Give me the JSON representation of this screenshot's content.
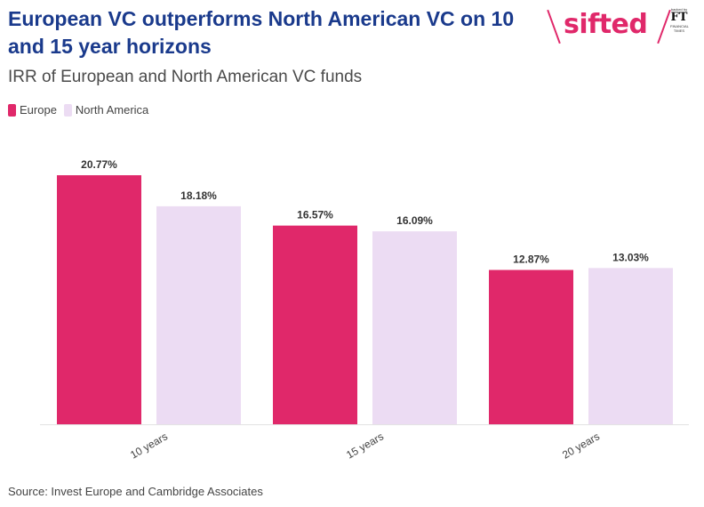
{
  "header": {
    "title": "European VC outperforms North American VC on 10 and 15 year horizons",
    "subtitle": "IRR of European and North American VC funds"
  },
  "logo": {
    "brand": "sifted",
    "backed_by": "backed by",
    "ft_mark": "FT",
    "ft_name": "FINANCIAL TIMES"
  },
  "legend": {
    "items": [
      {
        "label": "Europe",
        "color": "#e0286a"
      },
      {
        "label": "North America",
        "color": "#ecdcf3"
      }
    ]
  },
  "chart_data": {
    "type": "bar",
    "categories": [
      "10 years",
      "15 years",
      "20 years"
    ],
    "series": [
      {
        "name": "Europe",
        "color": "#e0286a",
        "values": [
          20.77,
          16.57,
          12.87
        ]
      },
      {
        "name": "North America",
        "color": "#ecdcf3",
        "values": [
          18.18,
          16.09,
          13.03
        ]
      }
    ],
    "data_labels": [
      [
        "20.77%",
        "16.57%",
        "12.87%"
      ],
      [
        "18.18%",
        "16.09%",
        "13.03%"
      ]
    ],
    "title": "European VC outperforms North American VC on 10 and 15 year horizons",
    "subtitle": "IRR of European and North American VC funds",
    "ylim": [
      0,
      20.77
    ],
    "grid": false,
    "legend_position": "top-left"
  },
  "source": "Source: Invest Europe and Cambridge Associates"
}
